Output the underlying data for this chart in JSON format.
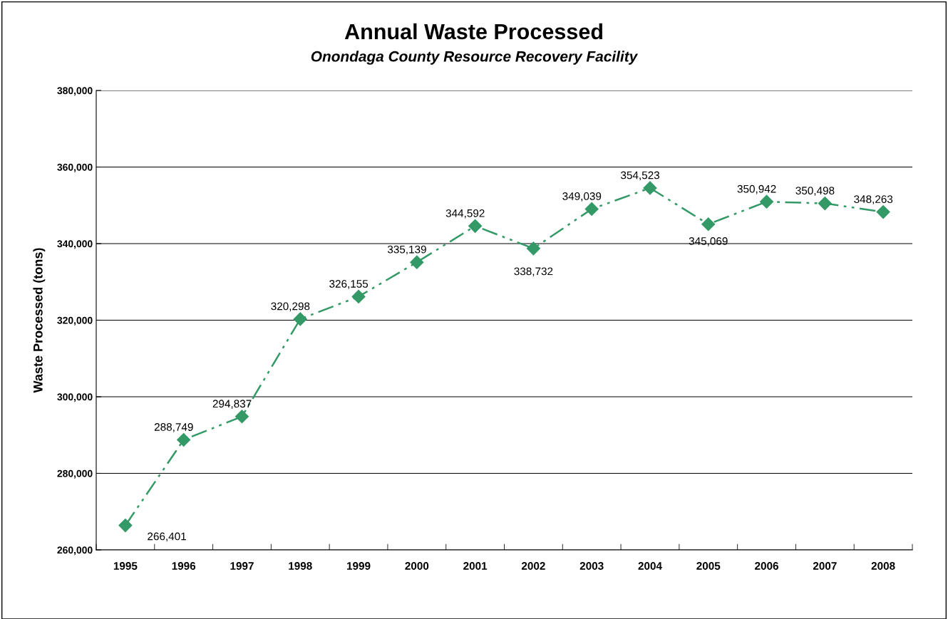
{
  "chart_data": {
    "type": "line",
    "title": "Annual Waste Processed",
    "subtitle": "Onondaga County Resource Recovery Facility",
    "ylabel": "Waste Processed (tons)",
    "categories": [
      "1995",
      "1996",
      "1997",
      "1998",
      "1999",
      "2000",
      "2001",
      "2002",
      "2003",
      "2004",
      "2005",
      "2006",
      "2007",
      "2008"
    ],
    "series": [
      {
        "color": "#339966",
        "values": [
          266401,
          288749,
          294837,
          320298,
          326155,
          335139,
          344592,
          338732,
          349039,
          354523,
          345069,
          350942,
          350498,
          348263
        ],
        "value_labels": [
          "266,401",
          "288,749",
          "294,837",
          "320,298",
          "326,155",
          "335,139",
          "344,592",
          "338,732",
          "349,039",
          "354,523",
          "345,069",
          "350,942",
          "350,498",
          "348,263"
        ]
      }
    ],
    "ylim": [
      260000,
      380000
    ],
    "yticks": [
      {
        "value": 260000,
        "label": "260,000"
      },
      {
        "value": 280000,
        "label": "280,000"
      },
      {
        "value": 300000,
        "label": "300,000"
      },
      {
        "value": 320000,
        "label": "320,000"
      },
      {
        "value": 340000,
        "label": "340,000"
      },
      {
        "value": 360000,
        "label": "360,000"
      },
      {
        "value": 380000,
        "label": "380,000"
      }
    ],
    "grid": "y",
    "marker": "diamond",
    "line_style": "dashed"
  }
}
